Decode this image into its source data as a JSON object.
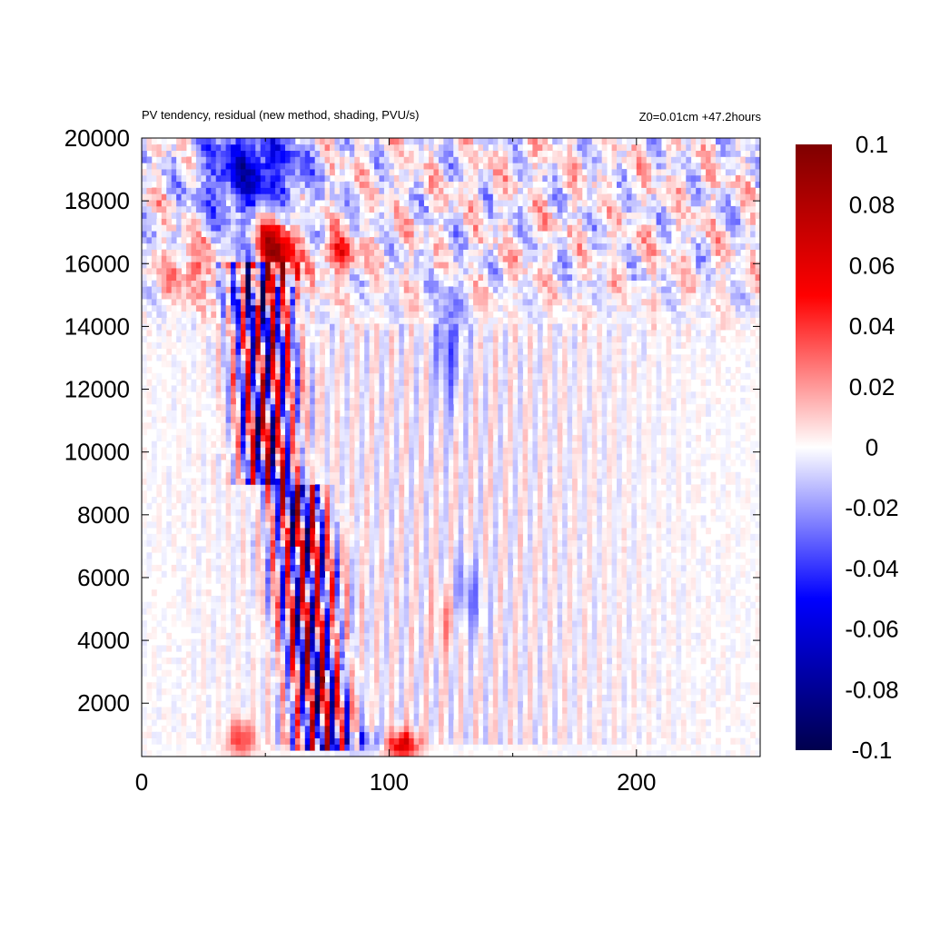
{
  "chart_data": {
    "type": "heatmap",
    "title": "PV tendency, residual (new method, shading, PVU/s)",
    "subtitle": "Z0=0.01cm   +47.2hours",
    "xlabel": "",
    "ylabel": "",
    "xlim": [
      0,
      250
    ],
    "ylim": [
      300,
      20000
    ],
    "x_ticks": [
      "0",
      "100",
      "200"
    ],
    "y_ticks": [
      "2000",
      "4000",
      "6000",
      "8000",
      "10000",
      "12000",
      "14000",
      "16000",
      "18000",
      "20000"
    ],
    "colorbar": {
      "range": [
        -0.1,
        0.1
      ],
      "ticks": [
        "-0.1",
        "-0.08",
        "-0.06",
        "-0.04",
        "-0.02",
        "0",
        "0.02",
        "0.04",
        "0.06",
        "0.08",
        "0.1"
      ],
      "colormap": [
        "#00004d",
        "#0000ff",
        "#ffffff",
        "#ff0000",
        "#7f0000"
      ]
    },
    "grid": false,
    "legend": "colorbar-right"
  }
}
